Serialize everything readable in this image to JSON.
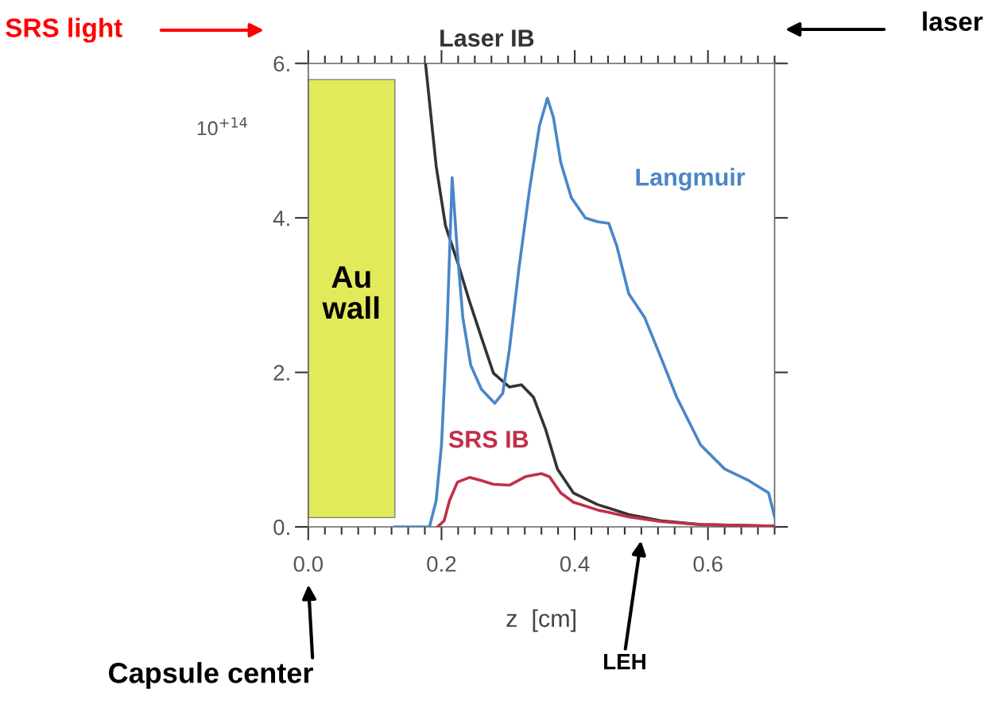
{
  "chart_data": {
    "type": "line",
    "xlabel": "z  [cm]",
    "ylabel": "10$^{+14}$",
    "xlim": [
      0,
      0.7
    ],
    "ylim": [
      0,
      6
    ],
    "xticks": [
      {
        "value": 0,
        "label": "0.0"
      },
      {
        "value": 0.2,
        "label": "0.2"
      },
      {
        "value": 0.4,
        "label": "0.4"
      },
      {
        "value": 0.6,
        "label": "0.6"
      }
    ],
    "yticks": [
      {
        "value": 0,
        "label": "0."
      },
      {
        "value": 2,
        "label": "2."
      },
      {
        "value": 4,
        "label": "4."
      },
      {
        "value": 6,
        "label": "6."
      }
    ],
    "grid": false,
    "legend": false,
    "marker": "none",
    "line_style": "solid",
    "bands": [
      {
        "axis": "x",
        "from": 0,
        "to": 0.13,
        "label": "Au wall",
        "color": "#e3ea5a"
      }
    ],
    "series": [
      {
        "name": "Laser IB",
        "color": "#333333",
        "x": [
          0.176,
          0.192,
          0.206,
          0.224,
          0.242,
          0.26,
          0.278,
          0.302,
          0.32,
          0.338,
          0.356,
          0.374,
          0.398,
          0.434,
          0.481,
          0.529,
          0.589,
          0.7
        ],
        "values": [
          6.0,
          4.67,
          3.9,
          3.43,
          2.92,
          2.45,
          1.99,
          1.81,
          1.84,
          1.68,
          1.27,
          0.75,
          0.44,
          0.29,
          0.16,
          0.08,
          0.03,
          0.01
        ]
      },
      {
        "name": "Langmuir",
        "color": "#4a86c8",
        "x": [
          0.13,
          0.182,
          0.192,
          0.2,
          0.208,
          0.216,
          0.224,
          0.232,
          0.244,
          0.26,
          0.28,
          0.292,
          0.302,
          0.316,
          0.332,
          0.347,
          0.359,
          0.368,
          0.379,
          0.395,
          0.416,
          0.434,
          0.451,
          0.463,
          0.481,
          0.505,
          0.529,
          0.553,
          0.589,
          0.625,
          0.661,
          0.691,
          0.7
        ],
        "values": [
          0,
          0,
          0.34,
          1.06,
          2.5,
          4.52,
          3.54,
          2.71,
          2.09,
          1.78,
          1.6,
          1.73,
          2.3,
          3.33,
          4.36,
          5.19,
          5.55,
          5.3,
          4.72,
          4.26,
          4.0,
          3.95,
          3.93,
          3.64,
          3.02,
          2.71,
          2.2,
          1.68,
          1.06,
          0.75,
          0.6,
          0.44,
          0.13
        ]
      },
      {
        "name": "SRS IB",
        "color": "#c0304a",
        "x": [
          0.194,
          0.204,
          0.212,
          0.224,
          0.242,
          0.26,
          0.278,
          0.302,
          0.326,
          0.35,
          0.362,
          0.379,
          0.398,
          0.434,
          0.481,
          0.529,
          0.589,
          0.7
        ],
        "values": [
          0,
          0.08,
          0.34,
          0.58,
          0.64,
          0.6,
          0.55,
          0.54,
          0.65,
          0.69,
          0.65,
          0.44,
          0.32,
          0.22,
          0.13,
          0.07,
          0.03,
          0.01
        ]
      }
    ],
    "annotations": [
      "SRS light",
      "laser",
      "Capsule center",
      "LEH"
    ]
  }
}
